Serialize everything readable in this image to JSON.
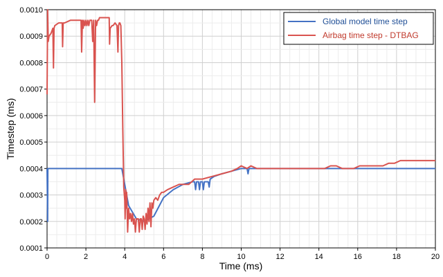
{
  "chart_data": {
    "type": "line",
    "title": "",
    "xlabel": "Time (ms)",
    "ylabel": "Timestep (ms)",
    "xlim": [
      0,
      20
    ],
    "ylim": [
      0.0001,
      0.001
    ],
    "x_ticks": [
      "0",
      "2",
      "4",
      "6",
      "8",
      "10",
      "12",
      "14",
      "16",
      "18",
      "20"
    ],
    "y_ticks": [
      "0.0001",
      "0.0002",
      "0.0003",
      "0.0004",
      "0.0005",
      "0.0006",
      "0.0007",
      "0.0008",
      "0.0009",
      "0.0010"
    ],
    "grid": true,
    "legend_position": "top-right",
    "series": [
      {
        "name": "Global model time step",
        "color": "#4472c4",
        "x": [
          0,
          0.03,
          0.04,
          0.05,
          3.85,
          3.9,
          4.2,
          4.6,
          5.0,
          5.5,
          6.0,
          6.5,
          7.0,
          7.5,
          7.6,
          7.65,
          7.7,
          7.8,
          7.85,
          7.9,
          8.0,
          8.05,
          8.1,
          8.3,
          8.35,
          8.4,
          8.6,
          9.0,
          9.5,
          10.0,
          10.3,
          10.35,
          10.4,
          10.6,
          11.0,
          12.0,
          20.0
        ],
        "y": [
          0.0004,
          0.0002,
          0.0004,
          0.0004,
          0.0004,
          0.00038,
          0.00026,
          0.00021,
          0.0002,
          0.00022,
          0.00029,
          0.00032,
          0.00034,
          0.00035,
          0.00035,
          0.00032,
          0.00035,
          0.00035,
          0.00032,
          0.00035,
          0.00035,
          0.00032,
          0.00035,
          0.00035,
          0.00033,
          0.00036,
          0.00037,
          0.00038,
          0.00039,
          0.0004,
          0.0004,
          0.00038,
          0.0004,
          0.0004,
          0.0004,
          0.0004,
          0.0004
        ]
      },
      {
        "name": "Airbag time step - DTBAG",
        "color": "#d9534f",
        "x": [
          0,
          0.03,
          0.06,
          0.1,
          0.2,
          0.3,
          0.33,
          0.36,
          0.4,
          0.6,
          0.78,
          0.8,
          0.83,
          0.9,
          1.2,
          1.6,
          1.75,
          1.78,
          1.82,
          1.86,
          1.9,
          1.95,
          2.0,
          2.05,
          2.1,
          2.15,
          2.2,
          2.3,
          2.35,
          2.4,
          2.45,
          2.5,
          2.55,
          2.6,
          2.65,
          2.7,
          2.75,
          2.8,
          3.0,
          3.2,
          3.22,
          3.25,
          3.35,
          3.4,
          3.5,
          3.6,
          3.65,
          3.68,
          3.72,
          3.75,
          3.8,
          3.85,
          3.9,
          3.95,
          4.0,
          4.02,
          4.05,
          4.08,
          4.1,
          4.15,
          4.2,
          4.25,
          4.3,
          4.35,
          4.4,
          4.45,
          4.5,
          4.55,
          4.6,
          4.7,
          4.75,
          4.8,
          4.85,
          4.9,
          4.95,
          5.0,
          5.05,
          5.1,
          5.15,
          5.2,
          5.25,
          5.3,
          5.35,
          5.4,
          5.45,
          5.5,
          5.6,
          5.7,
          5.8,
          5.9,
          6.0,
          6.2,
          6.5,
          6.8,
          7.0,
          7.3,
          7.6,
          7.8,
          8.0,
          8.5,
          9.0,
          9.5,
          9.8,
          10.0,
          10.3,
          10.5,
          10.8,
          11.0,
          11.5,
          12.0,
          12.5,
          13.0,
          13.5,
          14.0,
          14.3,
          14.6,
          14.9,
          15.2,
          15.5,
          15.8,
          16.1,
          16.4,
          16.7,
          17.0,
          17.3,
          17.6,
          17.9,
          18.2,
          18.5,
          18.8,
          19.1,
          19.4,
          19.7,
          20.0
        ],
        "y": [
          0.00068,
          0.001,
          0.00088,
          0.0009,
          0.00091,
          0.00093,
          0.00078,
          0.00093,
          0.00094,
          0.00095,
          0.00095,
          0.00086,
          0.00095,
          0.00095,
          0.00096,
          0.00096,
          0.00096,
          0.00084,
          0.00096,
          0.00093,
          0.00096,
          0.00094,
          0.00096,
          0.00094,
          0.00096,
          0.00094,
          0.00096,
          0.00096,
          0.00088,
          0.00096,
          0.00065,
          0.00096,
          0.00094,
          0.00096,
          0.00096,
          0.00097,
          0.00097,
          0.00097,
          0.00097,
          0.00097,
          0.00087,
          0.00093,
          0.00094,
          0.00094,
          0.00095,
          0.00094,
          0.00084,
          0.00094,
          0.00095,
          0.00095,
          0.00094,
          0.0008,
          0.00055,
          0.00033,
          0.00028,
          0.00021,
          0.00032,
          0.00025,
          0.00031,
          0.00016,
          0.00025,
          0.00021,
          0.00023,
          0.0002,
          0.00023,
          0.00019,
          0.00021,
          0.00016,
          0.00021,
          0.00021,
          0.00016,
          0.00021,
          0.00021,
          0.00017,
          0.00022,
          0.00021,
          0.00017,
          0.00023,
          0.00019,
          0.00025,
          0.0002,
          0.00027,
          0.00018,
          0.00027,
          0.00025,
          0.00028,
          0.00029,
          0.00028,
          0.0003,
          0.00031,
          0.00031,
          0.00032,
          0.00033,
          0.00034,
          0.00034,
          0.00034,
          0.00036,
          0.00036,
          0.00036,
          0.00037,
          0.00038,
          0.00039,
          0.0004,
          0.00041,
          0.0004,
          0.00041,
          0.0004,
          0.0004,
          0.0004,
          0.0004,
          0.0004,
          0.0004,
          0.0004,
          0.0004,
          0.0004,
          0.00041,
          0.00041,
          0.0004,
          0.0004,
          0.0004,
          0.00041,
          0.00041,
          0.00041,
          0.00041,
          0.00041,
          0.00042,
          0.00042,
          0.00043,
          0.00043,
          0.00043,
          0.00043,
          0.00043,
          0.00043,
          0.00043
        ]
      }
    ]
  }
}
